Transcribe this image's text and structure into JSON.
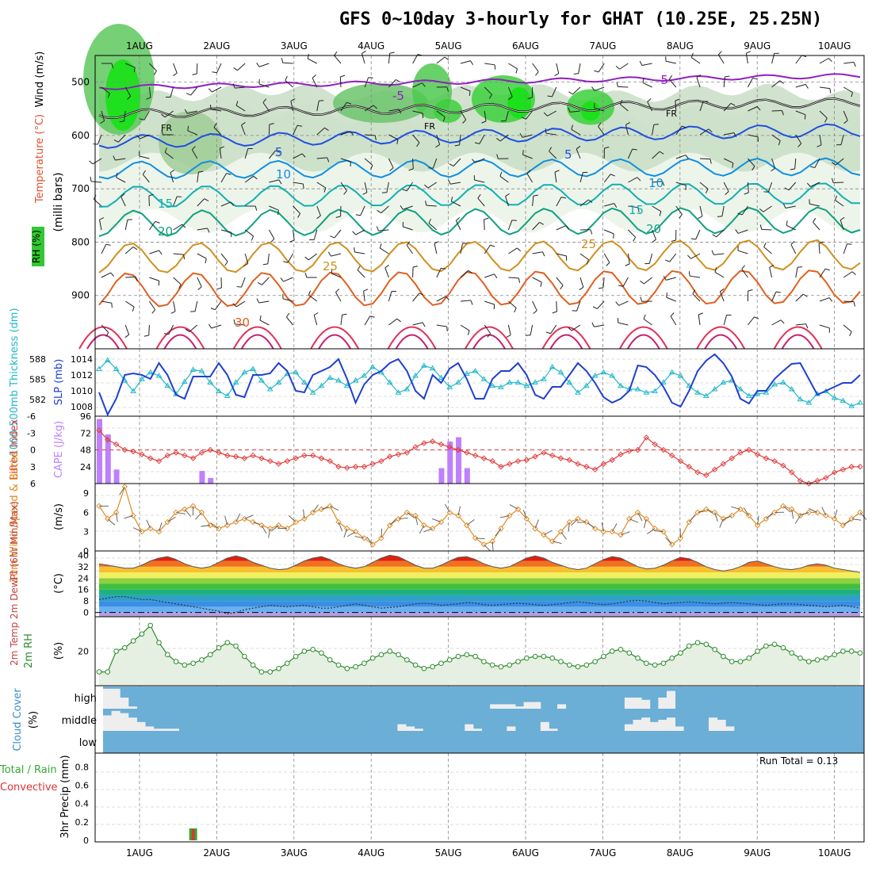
{
  "title": "GFS 0~10day 3-hourly for GHAT (10.25E, 25.25N)",
  "dates": [
    "1AUG",
    "2AUG",
    "3AUG",
    "4AUG",
    "5AUG",
    "6AUG",
    "7AUG",
    "8AUG",
    "9AUG",
    "10AUG"
  ],
  "colors": {
    "grid": "#888888",
    "cape": "#bf7fff",
    "li": "#e04040",
    "thick": "#20b8c8",
    "slp": "#2040d0",
    "wind": "#e08a20",
    "rh": "#2e8b2e",
    "cloud": "#6baed6",
    "precip_total": "#33aa33",
    "precip_conv": "#dd3333"
  },
  "chart_data": [
    {
      "type": "contour",
      "panel": "upper-air",
      "ylabel_wind": "Wind (m/s)",
      "ylabel_temp": "Temperature (°C)",
      "ylabel_rh": "RH (%)",
      "ylabel_p": "(milli bars)",
      "yticks": [
        "500",
        "600",
        "700",
        "800",
        "900"
      ],
      "ylim": [
        1000,
        450
      ],
      "freezing_label": "FR",
      "isotherm_labels": [
        {
          "label": "-5",
          "color": "#9020c0"
        },
        {
          "label": "5",
          "color": "#2050e0"
        },
        {
          "label": "10",
          "color": "#1090e0"
        },
        {
          "label": "15",
          "color": "#10b0b0"
        },
        {
          "label": "20",
          "color": "#10a080"
        },
        {
          "label": "25",
          "color": "#d09020"
        },
        {
          "label": "30",
          "color": "#e06020"
        }
      ],
      "isotherm_levels": [
        {
          "t": -5,
          "p": 510
        },
        {
          "t": 0,
          "p": 560
        },
        {
          "t": 5,
          "p": 612
        },
        {
          "t": 10,
          "p": 665
        },
        {
          "t": 15,
          "p": 715
        },
        {
          "t": 20,
          "p": 765
        },
        {
          "t": 25,
          "p": 830
        },
        {
          "t": 30,
          "p": 890
        }
      ]
    },
    {
      "type": "line",
      "panel": "thickness-slp",
      "ylabel_left": "1000-500mb Thickness (dm)",
      "ylabel_right": "SLP (mb)",
      "yticks_left": [
        "588",
        "585",
        "582"
      ],
      "yticks_right": [
        "1014",
        "1012",
        "1010",
        "1008"
      ],
      "ylim_left": [
        579.5,
        589.5
      ],
      "ylim_right": [
        1006.8,
        1015.3
      ],
      "series": [
        {
          "name": "Thickness",
          "values": [
            586.5,
            587.8,
            586.5,
            584.8,
            583.2,
            585.0,
            586.0,
            585.5,
            584.0,
            582.8,
            584.6,
            586.4,
            586.2,
            584.5,
            583.2,
            582.5,
            584.5,
            586.0,
            586.5,
            584.8,
            583.5,
            584.5,
            585.8,
            586.0,
            584.5,
            583.0,
            584.0,
            585.2,
            584.8,
            584.0,
            584.8,
            585.5,
            586.8,
            586.0,
            584.5,
            583.0,
            583.5,
            585.5,
            587.0,
            586.6,
            585.2,
            583.8,
            584.5,
            585.8,
            586.2,
            585.0,
            584.0,
            583.8,
            584.5,
            584.5,
            584.0,
            584.5,
            585.0,
            586.8,
            586.0,
            584.5,
            583.0,
            584.0,
            585.5,
            586.0,
            585.5,
            584.0,
            583.5,
            583.5,
            583.0,
            583.2,
            584.5,
            586.0,
            585.5,
            584.0,
            583.0,
            582.5,
            583.5,
            584.5,
            584.8,
            583.5,
            582.5,
            582.8,
            583.0,
            584.2,
            584.5,
            583.5,
            582.0,
            581.5,
            582.8,
            583.2,
            582.2,
            581.8,
            581.0,
            581.5
          ]
        },
        {
          "name": "SLP",
          "values": [
            1009.8,
            1007.0,
            1009.0,
            1012.0,
            1012.2,
            1012.0,
            1011.5,
            1013.5,
            1012.0,
            1009.5,
            1009.0,
            1011.8,
            1011.8,
            1011.8,
            1013.5,
            1012.0,
            1009.5,
            1009.2,
            1012.0,
            1012.0,
            1012.2,
            1013.5,
            1012.5,
            1010.0,
            1009.8,
            1012.0,
            1012.5,
            1013.0,
            1014.0,
            1011.5,
            1008.5,
            1010.8,
            1012.0,
            1012.5,
            1013.5,
            1014.0,
            1012.5,
            1010.0,
            1009.0,
            1012.0,
            1011.0,
            1012.8,
            1013.5,
            1011.5,
            1009.0,
            1009.0,
            1011.5,
            1012.5,
            1012.5,
            1013.5,
            1012.0,
            1009.5,
            1009.0,
            1010.5,
            1010.5,
            1012.0,
            1013.5,
            1012.5,
            1011.0,
            1009.2,
            1008.5,
            1009.0,
            1010.0,
            1013.2,
            1013.0,
            1012.0,
            1010.5,
            1008.5,
            1008.0,
            1010.0,
            1012.5,
            1013.8,
            1014.6,
            1013.5,
            1011.8,
            1009.0,
            1008.4,
            1010.0,
            1010.0,
            1011.5,
            1012.5,
            1013.4,
            1013.5,
            1011.5,
            1009.5,
            1010.0,
            1010.5,
            1011.0,
            1011.0,
            1012.0
          ]
        }
      ]
    },
    {
      "type": "bar+line",
      "panel": "cape-li",
      "ylabel_left": "Lifted Index",
      "ylabel_right": "CAPE (J/kg)",
      "yticks_left": [
        "-6",
        "-3",
        "0",
        "3",
        "6"
      ],
      "yticks_right": [
        "96",
        "72",
        "48",
        "24"
      ],
      "ylim_left": [
        6,
        -6
      ],
      "ylim_right": [
        0,
        96
      ],
      "cape": [
        92,
        70,
        20,
        0,
        0,
        0,
        0,
        0,
        0,
        0,
        0,
        0,
        18,
        8,
        0,
        0,
        0,
        0,
        0,
        0,
        0,
        0,
        0,
        0,
        0,
        0,
        0,
        0,
        0,
        0,
        0,
        0,
        0,
        0,
        0,
        0,
        0,
        0,
        0,
        0,
        22,
        60,
        66,
        22,
        0,
        0,
        0,
        0,
        0,
        0,
        0,
        0,
        0,
        0,
        0,
        0,
        0,
        0,
        0,
        0,
        0,
        0,
        0,
        0,
        0,
        0,
        0,
        0,
        0,
        0,
        0,
        0,
        0,
        0,
        0,
        0,
        0,
        0,
        0,
        0,
        0,
        0,
        0,
        0,
        0,
        0,
        0,
        0,
        0,
        0
      ],
      "li": [
        -3.5,
        -1.8,
        -1.0,
        0.0,
        0.3,
        0.8,
        1.5,
        2.0,
        1.0,
        0.5,
        1.0,
        1.5,
        0.5,
        0.0,
        0.5,
        1.0,
        1.2,
        1.5,
        1.0,
        1.5,
        2.0,
        2.5,
        2.0,
        1.5,
        1.0,
        1.0,
        1.5,
        2.0,
        3.0,
        3.2,
        3.0,
        3.0,
        2.5,
        2.0,
        1.2,
        0.8,
        0.5,
        -0.5,
        -1.2,
        -1.5,
        -1.0,
        -0.5,
        0.0,
        0.5,
        1.0,
        1.5,
        2.0,
        3.0,
        2.5,
        2.0,
        1.8,
        1.2,
        0.5,
        1.0,
        1.5,
        1.8,
        2.5,
        3.0,
        3.5,
        2.5,
        1.8,
        0.8,
        0.2,
        0.0,
        -2.2,
        -1.0,
        0.0,
        1.0,
        2.0,
        3.0,
        4.0,
        4.5,
        3.5,
        2.5,
        1.5,
        0.5,
        0.0,
        0.8,
        1.5,
        2.0,
        2.8,
        4.0,
        5.5,
        6.0,
        5.5,
        5.0,
        4.0,
        3.5,
        3.0,
        3.0
      ]
    },
    {
      "type": "line",
      "panel": "wind10m",
      "ylabel": "10m Wind Speed & Barbs",
      "yunits": "(m/s)",
      "yticks": [
        "9",
        "6",
        "3",
        "0"
      ],
      "ylim": [
        0,
        10.5
      ],
      "values": [
        7.0,
        5.0,
        6.0,
        10.0,
        5.5,
        3.0,
        3.5,
        3.0,
        4.5,
        6.0,
        6.5,
        7.0,
        6.0,
        4.0,
        3.5,
        4.0,
        4.5,
        5.0,
        4.5,
        4.0,
        3.5,
        4.0,
        3.5,
        4.5,
        5.0,
        6.0,
        6.5,
        7.0,
        4.5,
        3.5,
        3.0,
        2.0,
        1.0,
        2.0,
        4.0,
        5.0,
        6.0,
        5.5,
        4.0,
        3.5,
        4.5,
        6.0,
        5.5,
        4.0,
        2.0,
        1.0,
        1.5,
        3.5,
        5.5,
        6.5,
        5.0,
        3.5,
        2.5,
        1.5,
        3.0,
        4.5,
        5.0,
        4.5,
        3.5,
        3.0,
        3.0,
        2.5,
        5.0,
        6.0,
        5.0,
        3.5,
        3.0,
        1.0,
        2.0,
        4.5,
        6.0,
        6.5,
        6.0,
        5.0,
        5.5,
        6.5,
        5.5,
        4.0,
        5.0,
        6.0,
        7.0,
        6.5,
        5.5,
        6.0,
        6.0,
        5.5,
        5.0,
        4.0,
        5.0,
        6.0
      ]
    },
    {
      "type": "area+line",
      "panel": "temp2m",
      "ylabel": "2m Temp 2m DewPt (6hr Min/Max)",
      "yunits": "(°C)",
      "yticks": [
        "40",
        "32",
        "24",
        "16",
        "8",
        "0"
      ],
      "ylim": [
        -3,
        43
      ],
      "temp": [
        34,
        33,
        32,
        31,
        31,
        33,
        36,
        38,
        39,
        37,
        34,
        32,
        31,
        32,
        35,
        38,
        39.5,
        38,
        35,
        33,
        31,
        30,
        30.5,
        33,
        36,
        38,
        39,
        37,
        34,
        32,
        31,
        32,
        35,
        38,
        40,
        39,
        36,
        33,
        31,
        31,
        33,
        36,
        38.5,
        39,
        37,
        34,
        32,
        31,
        32,
        35,
        38,
        39.5,
        38,
        35,
        33,
        31,
        30,
        31,
        34,
        37,
        39,
        38,
        35,
        32,
        30.5,
        31,
        33,
        36,
        38.5,
        37.5,
        35,
        32,
        30,
        29,
        30,
        32,
        35,
        36,
        34,
        32,
        30.5,
        30,
        31,
        33,
        34,
        33,
        31,
        30,
        29,
        28
      ],
      "dew": [
        9,
        10,
        11,
        11,
        10,
        9,
        9,
        8,
        7,
        6,
        5,
        4,
        3,
        2,
        1,
        -1,
        0,
        2,
        3,
        4,
        5,
        4.5,
        4,
        4.5,
        5,
        4,
        3,
        3,
        4,
        5,
        6,
        5,
        4,
        3,
        3.5,
        4,
        5,
        6,
        6.5,
        6,
        5,
        5.5,
        6,
        7,
        6.5,
        5.5,
        5,
        5.5,
        6,
        6.5,
        6,
        5.5,
        5,
        5.5,
        6,
        7,
        7.5,
        7,
        6,
        5.5,
        6,
        7,
        8,
        8.5,
        8,
        7,
        6,
        6.5,
        7,
        7.5,
        7,
        6.5,
        6,
        6.5,
        7,
        6.5,
        6,
        5.5,
        5,
        5.5,
        6,
        6,
        5.5,
        5,
        4.5,
        4,
        4.5,
        5,
        4,
        3
      ]
    },
    {
      "type": "area+line",
      "panel": "rh2m",
      "ylabel": "2m RH",
      "yunits": "(%)",
      "yticks": [
        "20"
      ],
      "ylim": [
        0,
        40
      ],
      "values": [
        8,
        8,
        20,
        22,
        26,
        30,
        35,
        25,
        18,
        14,
        12,
        13,
        15,
        18,
        22,
        25,
        23,
        17,
        12,
        8,
        8,
        10,
        13,
        17,
        20,
        21,
        19,
        15,
        12,
        10,
        11,
        13,
        16,
        18,
        20,
        18,
        15,
        12,
        10,
        11,
        13,
        15,
        17,
        18,
        17,
        14,
        12,
        11,
        12,
        14,
        16,
        17,
        17,
        16,
        14,
        12,
        11,
        12,
        14,
        17,
        20,
        21,
        19,
        16,
        13,
        12,
        13,
        16,
        19,
        23,
        25,
        24,
        21,
        17,
        14,
        14,
        16,
        20,
        23,
        24,
        22,
        19,
        16,
        14,
        15,
        16,
        18,
        20,
        20,
        19
      ]
    },
    {
      "type": "heatmap",
      "panel": "cloud",
      "ylabel": "Cloud Cover",
      "yunits": "(%)",
      "levels": [
        "high",
        "middle",
        "low"
      ],
      "high": [
        0.9,
        0.9,
        0.5,
        0.1,
        0,
        0,
        0,
        0,
        0,
        0,
        0,
        0,
        0,
        0,
        0,
        0,
        0,
        0,
        0,
        0,
        0,
        0,
        0,
        0,
        0,
        0,
        0,
        0,
        0,
        0,
        0,
        0,
        0,
        0,
        0,
        0,
        0,
        0,
        0,
        0,
        0,
        0,
        0,
        0,
        0,
        0,
        0.2,
        0.2,
        0.2,
        0.1,
        0.3,
        0.3,
        0,
        0,
        0.2,
        0,
        0,
        0,
        0,
        0,
        0,
        0,
        0.5,
        0.5,
        0.4,
        0,
        0.5,
        0.8,
        0,
        0,
        0,
        0,
        0,
        0,
        0,
        0,
        0,
        0,
        0,
        0,
        0,
        0,
        0,
        0,
        0,
        0,
        0,
        0,
        0,
        0
      ],
      "middle": [
        0.7,
        0.9,
        0.8,
        0.6,
        0.4,
        0.2,
        0.1,
        0.1,
        0.1,
        0,
        0,
        0,
        0,
        0,
        0,
        0,
        0,
        0,
        0,
        0,
        0,
        0,
        0,
        0,
        0,
        0,
        0,
        0,
        0,
        0,
        0,
        0,
        0,
        0,
        0,
        0.3,
        0.2,
        0.1,
        0,
        0,
        0,
        0,
        0,
        0.3,
        0.1,
        0,
        0,
        0,
        0.2,
        0,
        0,
        0,
        0.4,
        0.1,
        0,
        0,
        0,
        0,
        0,
        0,
        0,
        0,
        0.3,
        0.5,
        0.6,
        0.4,
        0.5,
        0.6,
        0.2,
        0,
        0,
        0,
        0.6,
        0.5,
        0.2,
        0,
        0,
        0,
        0,
        0,
        0,
        0,
        0,
        0,
        0,
        0,
        0,
        0,
        0,
        0
      ],
      "run_total": "Run Total = 0.13"
    },
    {
      "type": "bar",
      "panel": "precip",
      "ylabel_total": "Total / Rain",
      "ylabel_conv": "Convective",
      "ylabel": "3hr Precip (mm)",
      "yticks": [
        "0.8",
        "0.6",
        "0.4",
        "0.2",
        "0"
      ],
      "ylim": [
        0,
        0.95
      ],
      "total": [
        0,
        0,
        0,
        0,
        0,
        0,
        0,
        0,
        0,
        0,
        0,
        0.13,
        0,
        0,
        0,
        0,
        0,
        0,
        0,
        0,
        0,
        0,
        0,
        0,
        0,
        0,
        0,
        0,
        0,
        0,
        0,
        0,
        0,
        0,
        0,
        0,
        0,
        0,
        0,
        0,
        0,
        0,
        0,
        0,
        0,
        0,
        0,
        0,
        0,
        0,
        0,
        0,
        0,
        0,
        0,
        0,
        0,
        0,
        0,
        0,
        0,
        0,
        0,
        0,
        0,
        0,
        0,
        0,
        0,
        0,
        0,
        0,
        0,
        0,
        0,
        0,
        0,
        0,
        0,
        0,
        0,
        0,
        0,
        0,
        0,
        0,
        0,
        0,
        0,
        0
      ],
      "convective": [
        0,
        0,
        0,
        0,
        0,
        0,
        0,
        0,
        0,
        0,
        0,
        0.12,
        0,
        0,
        0,
        0,
        0,
        0,
        0,
        0,
        0,
        0,
        0,
        0,
        0,
        0,
        0,
        0,
        0,
        0,
        0,
        0,
        0,
        0,
        0,
        0,
        0,
        0,
        0,
        0,
        0,
        0,
        0,
        0,
        0,
        0,
        0,
        0,
        0,
        0,
        0,
        0,
        0,
        0,
        0,
        0,
        0,
        0,
        0,
        0,
        0,
        0,
        0,
        0,
        0,
        0,
        0,
        0,
        0,
        0,
        0,
        0,
        0,
        0,
        0,
        0,
        0,
        0,
        0,
        0,
        0,
        0,
        0,
        0,
        0,
        0,
        0,
        0,
        0,
        0,
        0
      ]
    }
  ]
}
